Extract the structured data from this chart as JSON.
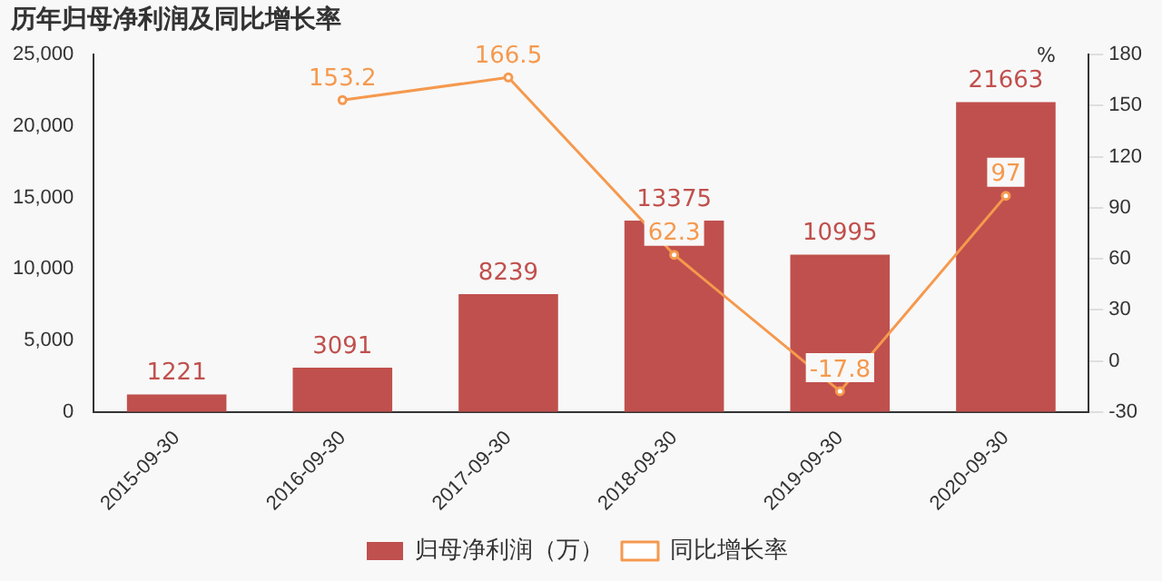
{
  "chart_data": {
    "type": "bar",
    "title": "历年归母净利润及同比增长率",
    "y2label": "%",
    "categories": [
      "2015-09-30",
      "2016-09-30",
      "2017-09-30",
      "2018-09-30",
      "2019-09-30",
      "2020-09-30"
    ],
    "series": [
      {
        "name": "归母净利润（万）",
        "color": "#c0504d",
        "values": [
          1221,
          3091,
          8239,
          13375,
          10995,
          21663
        ]
      },
      {
        "name": "同比增长率",
        "type": "line",
        "axis": "y2",
        "color": "#f5994e",
        "marker": "circle",
        "values": [
          null,
          153.2,
          166.5,
          62.3,
          -17.8,
          97
        ]
      }
    ],
    "ylim": [
      0,
      25000
    ],
    "yticks": [
      0,
      {
        "value": 5000,
        "label": "5,000"
      },
      {
        "value": 10000,
        "label": "10,000"
      },
      {
        "value": 15000,
        "label": "15,000"
      },
      {
        "value": 20000,
        "label": "20,000"
      },
      {
        "value": 25000,
        "label": "25,000"
      }
    ],
    "y2lim": [
      -30,
      180
    ],
    "y2ticks": [
      -30,
      0,
      30,
      60,
      90,
      120,
      150,
      180
    ],
    "data_labels": true,
    "grid": false,
    "legend": "bottom"
  }
}
